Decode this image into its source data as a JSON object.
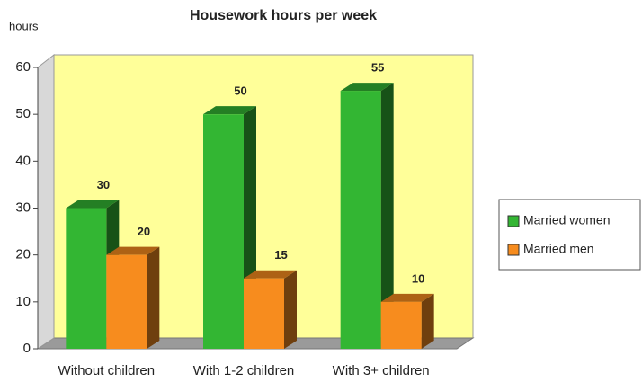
{
  "chart_data": {
    "type": "bar3d",
    "title": "Housework hours per week",
    "y_label": "hours",
    "categories": [
      "Without children",
      "With 1-2 children",
      "With 3+ children"
    ],
    "series": [
      {
        "name": "Married women",
        "color": "#33b633",
        "values": [
          30,
          50,
          55
        ]
      },
      {
        "name": "Married men",
        "color": "#f78c1e",
        "values": [
          20,
          15,
          10
        ]
      }
    ],
    "ylim": [
      0,
      60
    ],
    "yticks": [
      0,
      10,
      20,
      30,
      40,
      50,
      60
    ],
    "legend": "right"
  }
}
